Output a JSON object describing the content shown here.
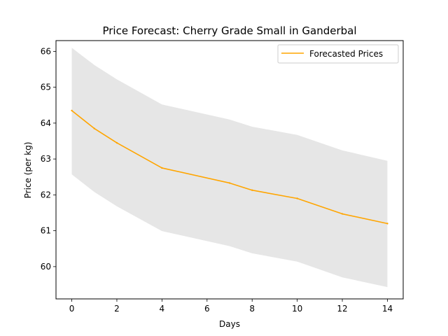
{
  "chart_data": {
    "type": "line",
    "title": "Price Forecast: Cherry Grade Small in Ganderbal",
    "xlabel": "Days",
    "ylabel": "Price (per kg)",
    "xlim": [
      -0.7,
      14.7
    ],
    "ylim": [
      59.1,
      66.3
    ],
    "xticks": [
      0,
      2,
      4,
      6,
      8,
      10,
      12,
      14
    ],
    "yticks": [
      60,
      61,
      62,
      63,
      64,
      65,
      66
    ],
    "grid": false,
    "legend": {
      "position": "top-right",
      "entries": [
        "Forecasted Prices"
      ]
    },
    "series": [
      {
        "name": "Forecasted Prices",
        "color": "#ffa500",
        "x": [
          0,
          1,
          2,
          4,
          7,
          8,
          10,
          12,
          14
        ],
        "values": [
          64.35,
          63.85,
          63.45,
          62.75,
          62.33,
          62.13,
          61.9,
          61.47,
          61.2
        ]
      }
    ],
    "confidence_band": {
      "color": "#e6e6e6",
      "x": [
        0,
        1,
        2,
        4,
        7,
        8,
        10,
        12,
        14
      ],
      "lower": [
        62.57,
        62.08,
        61.68,
        60.99,
        60.57,
        60.37,
        60.14,
        59.7,
        59.43
      ],
      "upper": [
        66.1,
        65.62,
        65.22,
        64.52,
        64.1,
        63.9,
        63.67,
        63.24,
        62.95
      ]
    }
  }
}
